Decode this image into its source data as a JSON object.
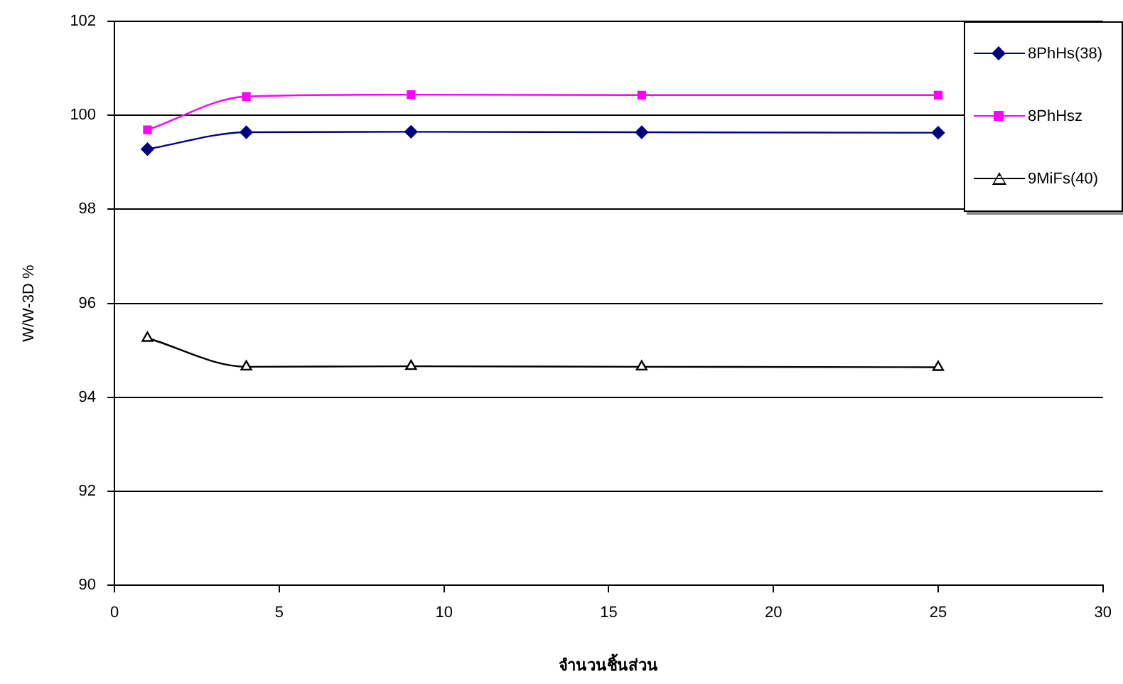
{
  "chart_data": {
    "type": "line",
    "xlabel": "จำนวนชิ้นส่วน",
    "ylabel": "W/W-3D %",
    "x": [
      1,
      4,
      9,
      16,
      25
    ],
    "series": [
      {
        "name": "8PhHs(38)",
        "color": "#000080",
        "marker": "diamond",
        "values": [
          99.28,
          99.64,
          99.65,
          99.64,
          99.63
        ]
      },
      {
        "name": "8PhHsz",
        "color": "#ff00ff",
        "marker": "square",
        "values": [
          99.69,
          100.4,
          100.44,
          100.43,
          100.43
        ]
      },
      {
        "name": "9MiFs(40)",
        "color": "#000000",
        "marker": "triangle",
        "values": [
          95.26,
          94.65,
          94.66,
          94.65,
          94.64
        ]
      }
    ],
    "xlim": [
      0,
      30
    ],
    "xticks": [
      0,
      5,
      10,
      15,
      20,
      25,
      30
    ],
    "ylim": [
      90,
      102
    ],
    "yticks": [
      90,
      92,
      94,
      96,
      98,
      100,
      102
    ],
    "grid": "y",
    "legend": "top right"
  }
}
